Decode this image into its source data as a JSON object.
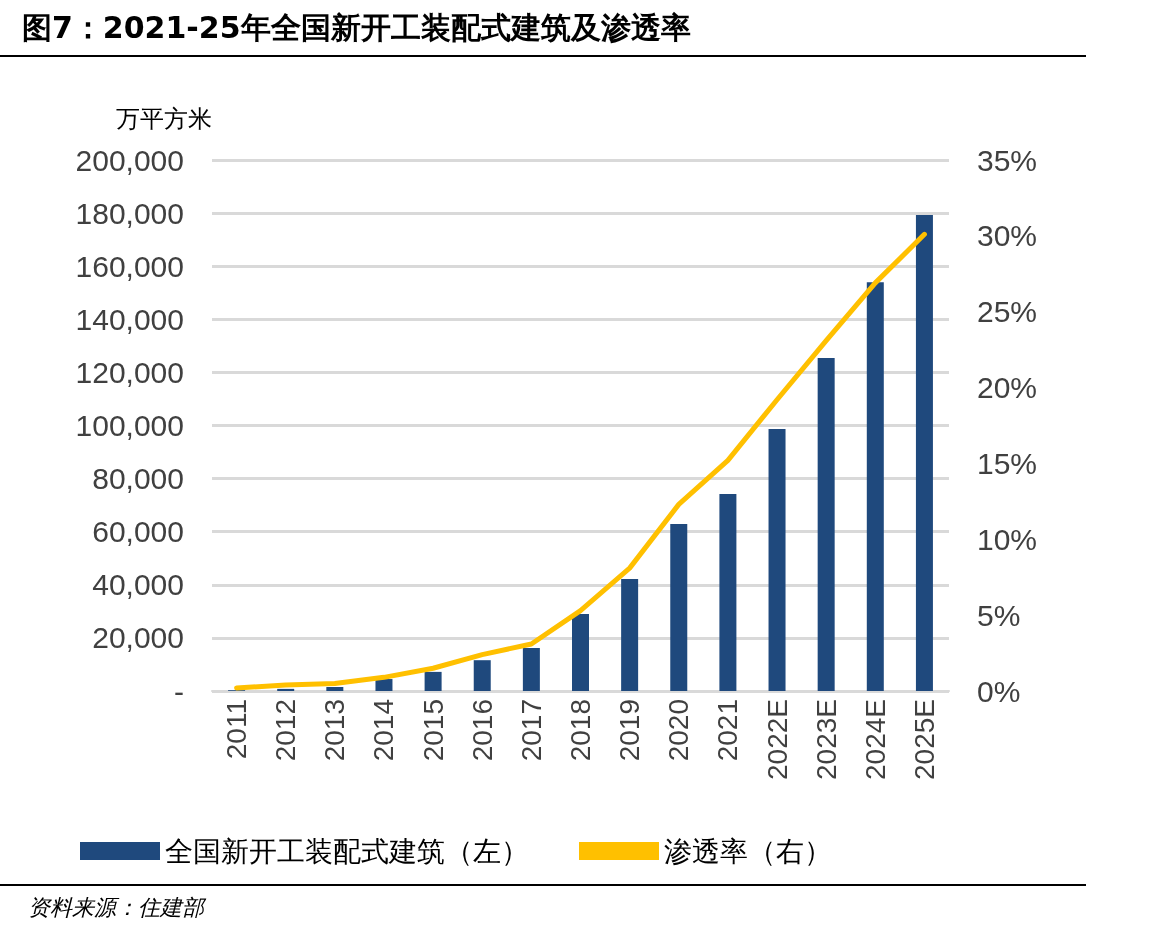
{
  "chart_data": {
    "type": "bar",
    "title": "图7：2021-25年全国新开工装配式建筑及渗透率",
    "ylabel": "万平方米",
    "annotations": [
      "资料来源：住建部"
    ],
    "categories": [
      "2011",
      "2012",
      "2013",
      "2014",
      "2015",
      "2016",
      "2017",
      "2018",
      "2019",
      "2020",
      "2021",
      "2022E",
      "2023E",
      "2024E",
      "2025E"
    ],
    "series": [
      {
        "name": "全国新开工装配式建筑（左）",
        "color": "#1f497d",
        "values": [
          300,
          800,
          1500,
          4500,
          7200,
          11600,
          16200,
          29000,
          42200,
          62900,
          74200,
          98700,
          125400,
          154000,
          179300
        ]
      },
      {
        "name": "渗透率（右）",
        "type": "line",
        "axis": "y2",
        "color": "#ffc000",
        "values": [
          0.2,
          0.4,
          0.5,
          0.9,
          1.5,
          2.4,
          3.1,
          5.3,
          8.1,
          12.3,
          15.2,
          19.2,
          23.1,
          26.9,
          30.1
        ]
      }
    ],
    "ylim": [
      0,
      200000
    ],
    "yticks": [
      {
        "value": 0,
        "label": "-"
      },
      {
        "value": 20000,
        "label": "20,000"
      },
      {
        "value": 40000,
        "label": "40,000"
      },
      {
        "value": 60000,
        "label": "60,000"
      },
      {
        "value": 80000,
        "label": "80,000"
      },
      {
        "value": 100000,
        "label": "100,000"
      },
      {
        "value": 120000,
        "label": "120,000"
      },
      {
        "value": 140000,
        "label": "140,000"
      },
      {
        "value": 160000,
        "label": "160,000"
      },
      {
        "value": 180000,
        "label": "180,000"
      },
      {
        "value": 200000,
        "label": "200,000"
      }
    ],
    "y2lim": [
      0,
      35
    ],
    "y2ticks": [
      {
        "value": 0,
        "label": "0%"
      },
      {
        "value": 5,
        "label": "5%"
      },
      {
        "value": 10,
        "label": "10%"
      },
      {
        "value": 15,
        "label": "15%"
      },
      {
        "value": 20,
        "label": "20%"
      },
      {
        "value": 25,
        "label": "25%"
      },
      {
        "value": 30,
        "label": "30%"
      },
      {
        "value": 35,
        "label": "35%"
      }
    ],
    "grid": "y",
    "legend": "bottom",
    "marker": "none",
    "line_style": "solid"
  }
}
